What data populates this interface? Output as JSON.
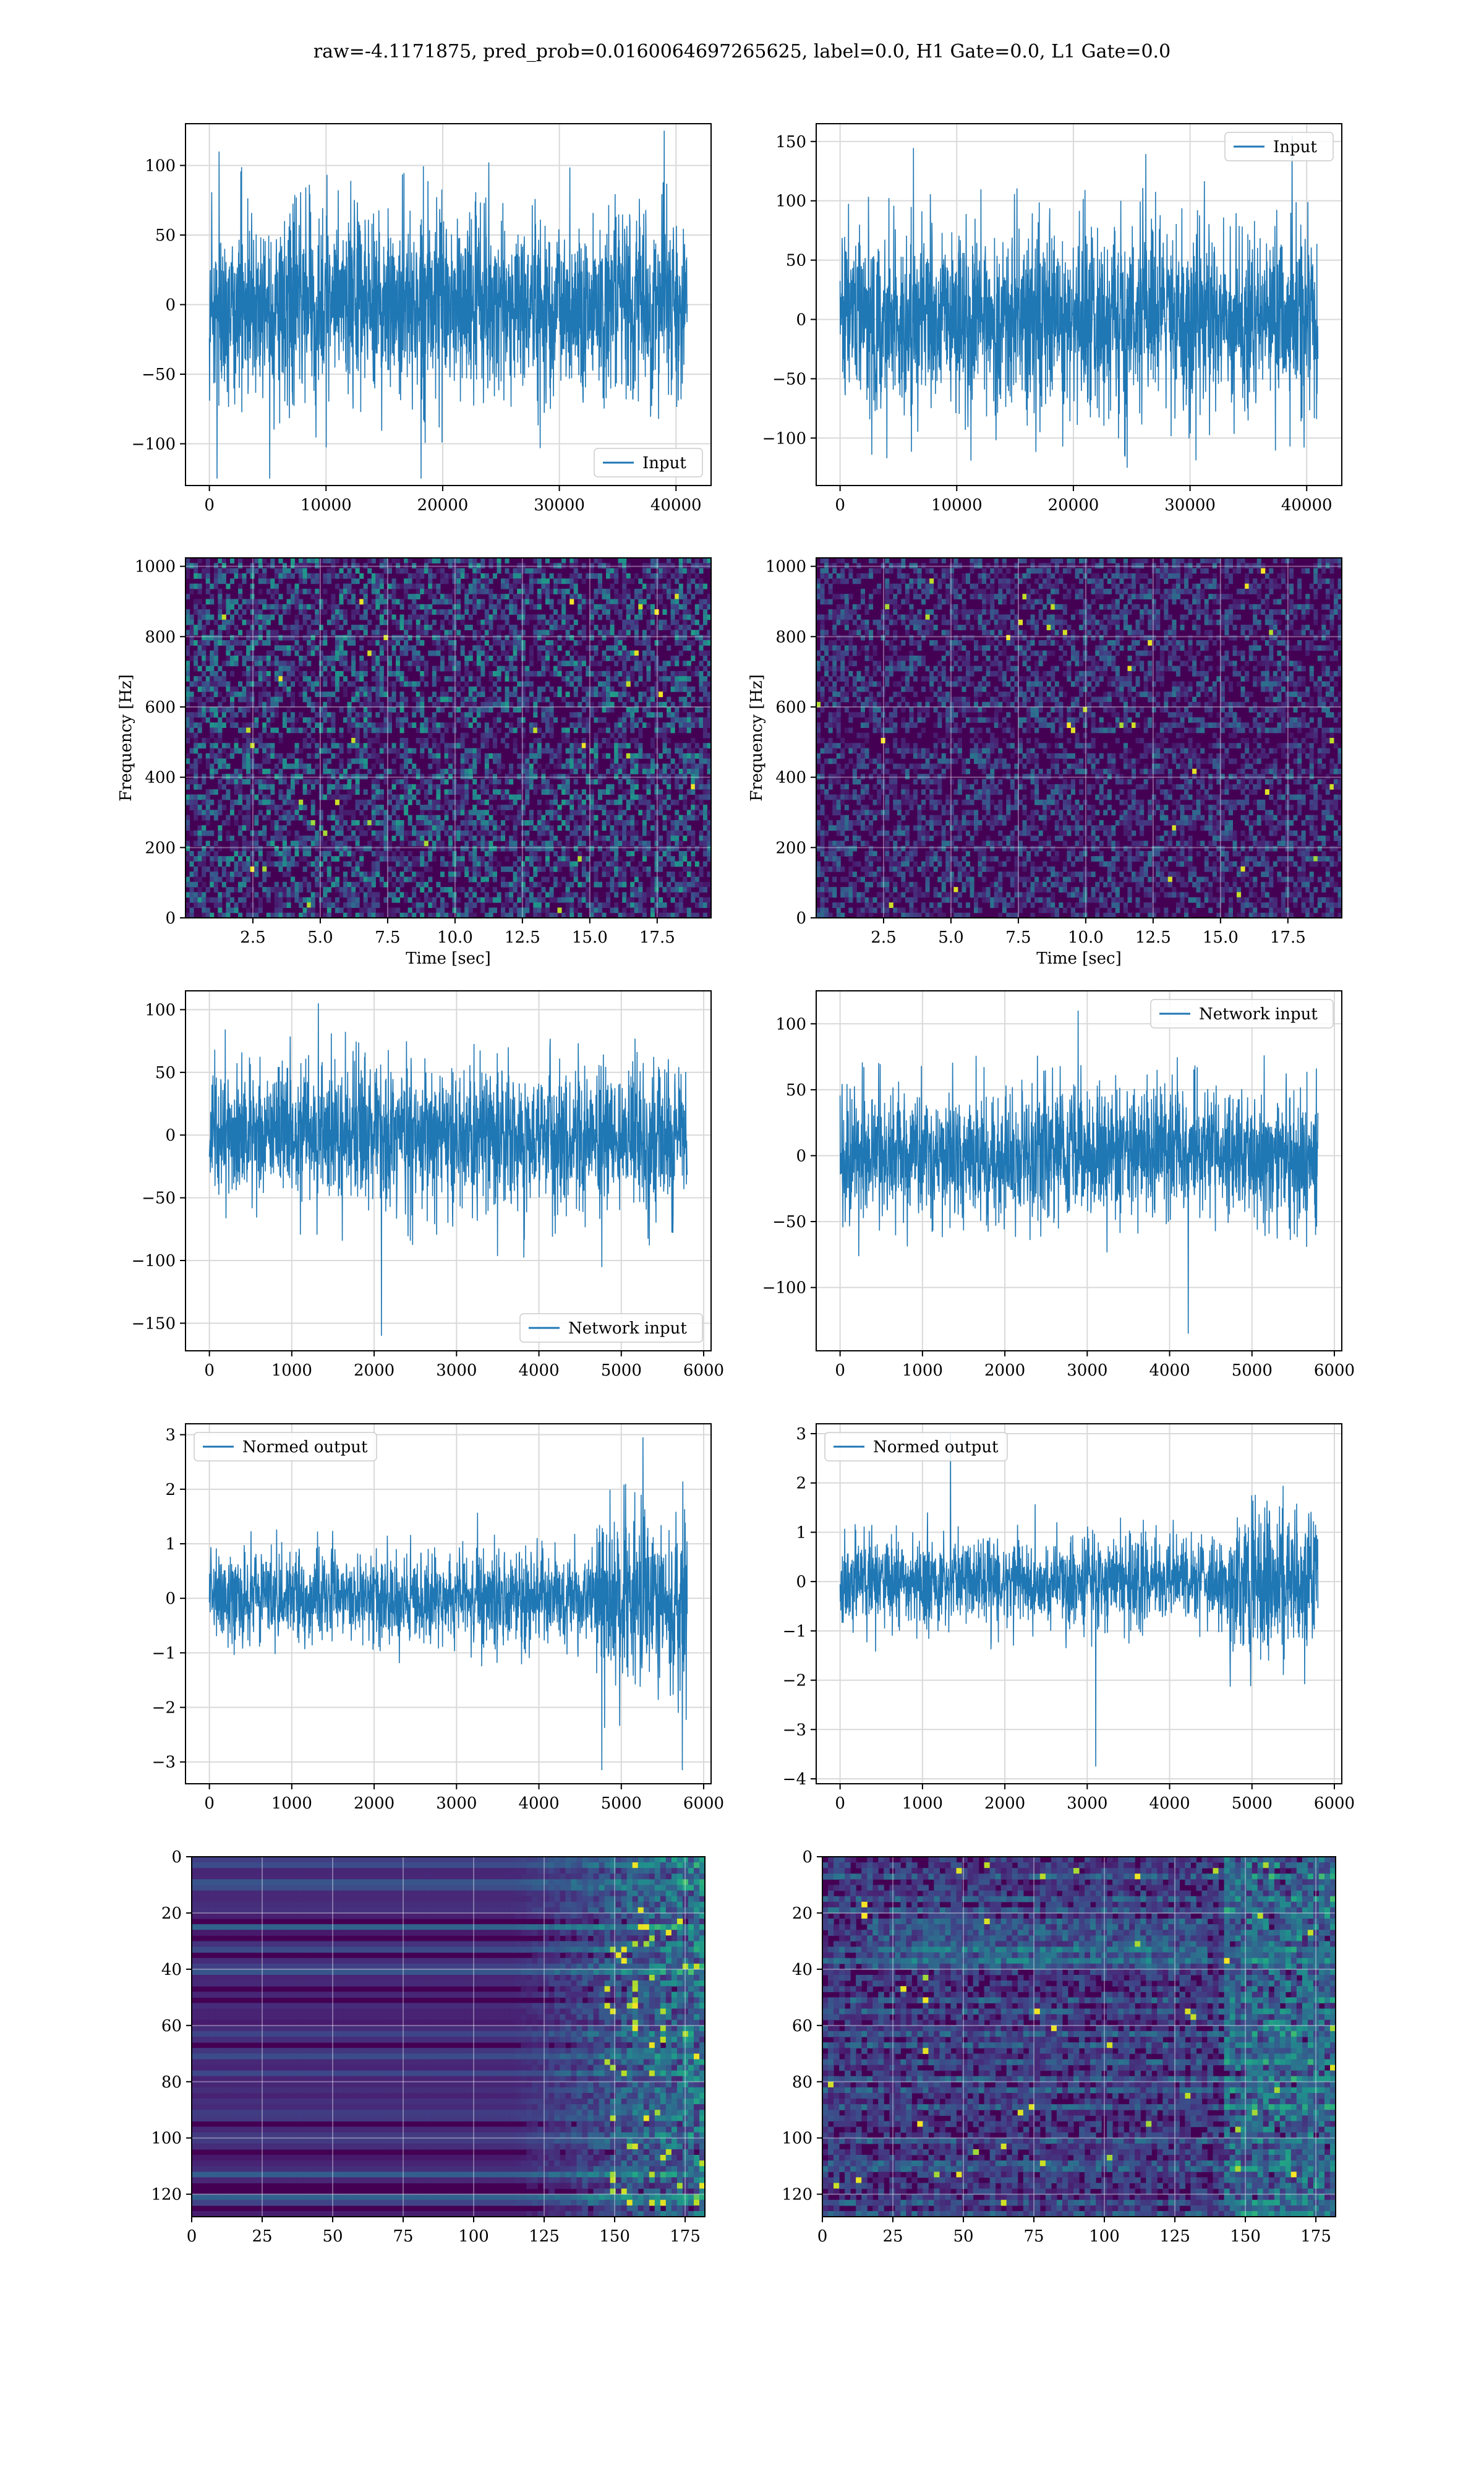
{
  "figure": {
    "title": "raw=-4.1171875, pred_prob=0.0160064697265625, label=0.0, H1 Gate=0.0, L1 Gate=0.0"
  },
  "colors": {
    "series": "#1f77b4",
    "grid": "#d9d9d9",
    "axes": "#000000",
    "spectrogram_dark": "#440154",
    "spectrogram_mid": "#21908d",
    "spectrogram_bright": "#fde725"
  },
  "chart_data": [
    {
      "id": "h1-input",
      "type": "line",
      "series": [
        {
          "name": "Input",
          "x_range": [
            0,
            40960
          ],
          "amplitude": 60,
          "peaks": [
            110,
            -125
          ]
        }
      ],
      "xlim": [
        -2048,
        43008
      ],
      "ylim": [
        -130,
        130
      ],
      "xticks": [
        0,
        10000,
        20000,
        30000,
        40000
      ],
      "xticklabels": [
        "0",
        "10000",
        "20000",
        "30000",
        "40000"
      ],
      "yticks": [
        -100,
        -50,
        0,
        50,
        100
      ],
      "yticklabels": [
        "−100",
        "−50",
        "0",
        "50",
        "100"
      ],
      "xlabel": "",
      "ylabel": "",
      "legend": "lower right",
      "grid": true
    },
    {
      "id": "l1-input",
      "type": "line",
      "series": [
        {
          "name": "Input",
          "x_range": [
            0,
            40960
          ],
          "amplitude": 70,
          "peaks": [
            155,
            -125
          ]
        }
      ],
      "xlim": [
        -2048,
        43008
      ],
      "ylim": [
        -140,
        165
      ],
      "xticks": [
        0,
        10000,
        20000,
        30000,
        40000
      ],
      "xticklabels": [
        "0",
        "10000",
        "20000",
        "30000",
        "40000"
      ],
      "yticks": [
        -100,
        -50,
        0,
        50,
        100,
        150
      ],
      "yticklabels": [
        "−100",
        "−50",
        "0",
        "50",
        "100",
        "150"
      ],
      "xlabel": "",
      "ylabel": "",
      "legend": "upper right",
      "grid": true
    },
    {
      "id": "h1-spectrogram",
      "type": "heatmap",
      "xlim": [
        0,
        19.5
      ],
      "ylim": [
        0,
        1024
      ],
      "xticks": [
        2.5,
        5.0,
        7.5,
        10.0,
        12.5,
        15.0,
        17.5
      ],
      "xticklabels": [
        "2.5",
        "5.0",
        "7.5",
        "10.0",
        "12.5",
        "15.0",
        "17.5"
      ],
      "yticks": [
        0,
        200,
        400,
        600,
        800,
        1000
      ],
      "yticklabels": [
        "0",
        "200",
        "400",
        "600",
        "800",
        "1000"
      ],
      "xlabel": "Time [sec]",
      "ylabel": "Frequency [Hz]",
      "grid": true
    },
    {
      "id": "l1-spectrogram",
      "type": "heatmap",
      "xlim": [
        0,
        19.5
      ],
      "ylim": [
        0,
        1024
      ],
      "xticks": [
        2.5,
        5.0,
        7.5,
        10.0,
        12.5,
        15.0,
        17.5
      ],
      "xticklabels": [
        "2.5",
        "5.0",
        "7.5",
        "10.0",
        "12.5",
        "15.0",
        "17.5"
      ],
      "yticks": [
        0,
        200,
        400,
        600,
        800,
        1000
      ],
      "yticklabels": [
        "0",
        "200",
        "400",
        "600",
        "800",
        "1000"
      ],
      "xlabel": "Time [sec]",
      "ylabel": "Frequency [Hz]",
      "grid": true
    },
    {
      "id": "h1-network-input",
      "type": "line",
      "series": [
        {
          "name": "Network input",
          "x_range": [
            0,
            5800
          ],
          "amplitude": 50,
          "peaks": [
            105,
            -160
          ]
        }
      ],
      "xlim": [
        -290,
        6090
      ],
      "ylim": [
        -172,
        115
      ],
      "xticks": [
        0,
        1000,
        2000,
        3000,
        4000,
        5000,
        6000
      ],
      "xticklabels": [
        "0",
        "1000",
        "2000",
        "3000",
        "4000",
        "5000",
        "6000"
      ],
      "yticks": [
        -150,
        -100,
        -50,
        0,
        50,
        100
      ],
      "yticklabels": [
        "−150",
        "−100",
        "−50",
        "0",
        "50",
        "100"
      ],
      "xlabel": "",
      "ylabel": "",
      "legend": "lower right",
      "grid": true
    },
    {
      "id": "l1-network-input",
      "type": "line",
      "series": [
        {
          "name": "Network input",
          "x_range": [
            0,
            5800
          ],
          "amplitude": 45,
          "peaks": [
            110,
            -135
          ]
        }
      ],
      "xlim": [
        -290,
        6090
      ],
      "ylim": [
        -148,
        125
      ],
      "xticks": [
        0,
        1000,
        2000,
        3000,
        4000,
        5000,
        6000
      ],
      "xticklabels": [
        "0",
        "1000",
        "2000",
        "3000",
        "4000",
        "5000",
        "6000"
      ],
      "yticks": [
        -100,
        -50,
        0,
        50,
        100
      ],
      "yticklabels": [
        "−100",
        "−50",
        "0",
        "50",
        "100"
      ],
      "xlabel": "",
      "ylabel": "",
      "legend": "upper right",
      "grid": true
    },
    {
      "id": "h1-normed-output",
      "type": "line",
      "series": [
        {
          "name": "Normed output",
          "x_range": [
            0,
            5800
          ],
          "amplitude": 0.75,
          "burst": [
            4700,
            5800,
            2.0
          ],
          "peaks": [
            2.95,
            -3.15
          ]
        }
      ],
      "xlim": [
        -290,
        6090
      ],
      "ylim": [
        -3.4,
        3.2
      ],
      "xticks": [
        0,
        1000,
        2000,
        3000,
        4000,
        5000,
        6000
      ],
      "xticklabels": [
        "0",
        "1000",
        "2000",
        "3000",
        "4000",
        "5000",
        "6000"
      ],
      "yticks": [
        -3,
        -2,
        -1,
        0,
        1,
        2,
        3
      ],
      "yticklabels": [
        "−3",
        "−2",
        "−1",
        "0",
        "1",
        "2",
        "3"
      ],
      "xlabel": "",
      "ylabel": "",
      "legend": "upper left",
      "grid": true
    },
    {
      "id": "l1-normed-output",
      "type": "line",
      "series": [
        {
          "name": "Normed output",
          "x_range": [
            0,
            5800
          ],
          "amplitude": 0.8,
          "burst": [
            4700,
            5800,
            1.7
          ],
          "peaks": [
            3.0,
            -3.75
          ]
        }
      ],
      "xlim": [
        -290,
        6090
      ],
      "ylim": [
        -4.1,
        3.2
      ],
      "xticks": [
        0,
        1000,
        2000,
        3000,
        4000,
        5000,
        6000
      ],
      "xticklabels": [
        "0",
        "1000",
        "2000",
        "3000",
        "4000",
        "5000",
        "6000"
      ],
      "yticks": [
        -4,
        -3,
        -2,
        -1,
        0,
        1,
        2,
        3
      ],
      "yticklabels": [
        "−4",
        "−3",
        "−2",
        "−1",
        "0",
        "1",
        "2",
        "3"
      ],
      "xlabel": "",
      "ylabel": "",
      "legend": "upper left",
      "grid": true
    },
    {
      "id": "h1-feature-map",
      "type": "heatmap",
      "xlim": [
        0,
        182
      ],
      "ylim": [
        128,
        0
      ],
      "xticks": [
        0,
        25,
        50,
        75,
        100,
        125,
        150,
        175
      ],
      "xticklabels": [
        "0",
        "25",
        "50",
        "75",
        "100",
        "125",
        "150",
        "175"
      ],
      "yticks": [
        0,
        20,
        40,
        60,
        80,
        100,
        120
      ],
      "yticklabels": [
        "0",
        "20",
        "40",
        "60",
        "80",
        "100",
        "120"
      ],
      "xlabel": "",
      "ylabel": "",
      "grid": true
    },
    {
      "id": "l1-feature-map",
      "type": "heatmap",
      "xlim": [
        0,
        182
      ],
      "ylim": [
        128,
        0
      ],
      "xticks": [
        0,
        25,
        50,
        75,
        100,
        125,
        150,
        175
      ],
      "xticklabels": [
        "0",
        "25",
        "50",
        "75",
        "100",
        "125",
        "150",
        "175"
      ],
      "yticks": [
        0,
        20,
        40,
        60,
        80,
        100,
        120
      ],
      "yticklabels": [
        "0",
        "20",
        "40",
        "60",
        "80",
        "100",
        "120"
      ],
      "xlabel": "",
      "ylabel": "",
      "grid": true
    }
  ]
}
